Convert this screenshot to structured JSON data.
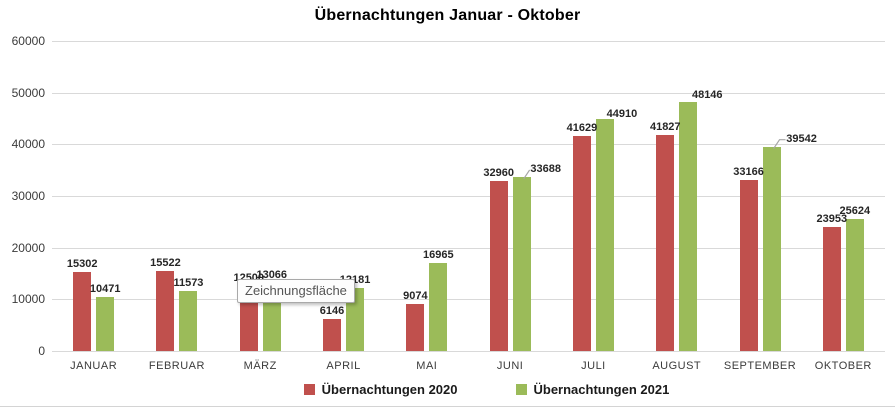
{
  "chart": {
    "title": "Übernachtungen Januar - Oktober",
    "tooltip": {
      "text": "Zeichnungsfläche"
    }
  },
  "chart_data": {
    "type": "bar",
    "title": "Übernachtungen Januar - Oktober",
    "categories": [
      "JANUAR",
      "FEBRUAR",
      "MÄRZ",
      "APRIL",
      "MAI",
      "JUNI",
      "JULI",
      "AUGUST",
      "SEPTEMBER",
      "OKTOBER"
    ],
    "series": [
      {
        "name": "Übernachtungen 2020",
        "color": "#C0504D",
        "values": [
          15302,
          15522,
          12500,
          6146,
          9074,
          32960,
          41629,
          41827,
          33166,
          23953
        ]
      },
      {
        "name": "Übernachtungen 2021",
        "color": "#9BBB59",
        "values": [
          10471,
          11573,
          13066,
          12181,
          16965,
          33688,
          44910,
          48146,
          39542,
          25624
        ]
      }
    ],
    "maerz_2020_label": {
      "visible_text": "1",
      "occluded_by": "Zeichnungsfläche tooltip",
      "value_estimated": true
    },
    "ylim": [
      0,
      60000
    ],
    "yticks": [
      0,
      10000,
      20000,
      30000,
      40000,
      50000,
      60000
    ],
    "grid": true,
    "data_labels": true,
    "legend_position": "bottom"
  }
}
